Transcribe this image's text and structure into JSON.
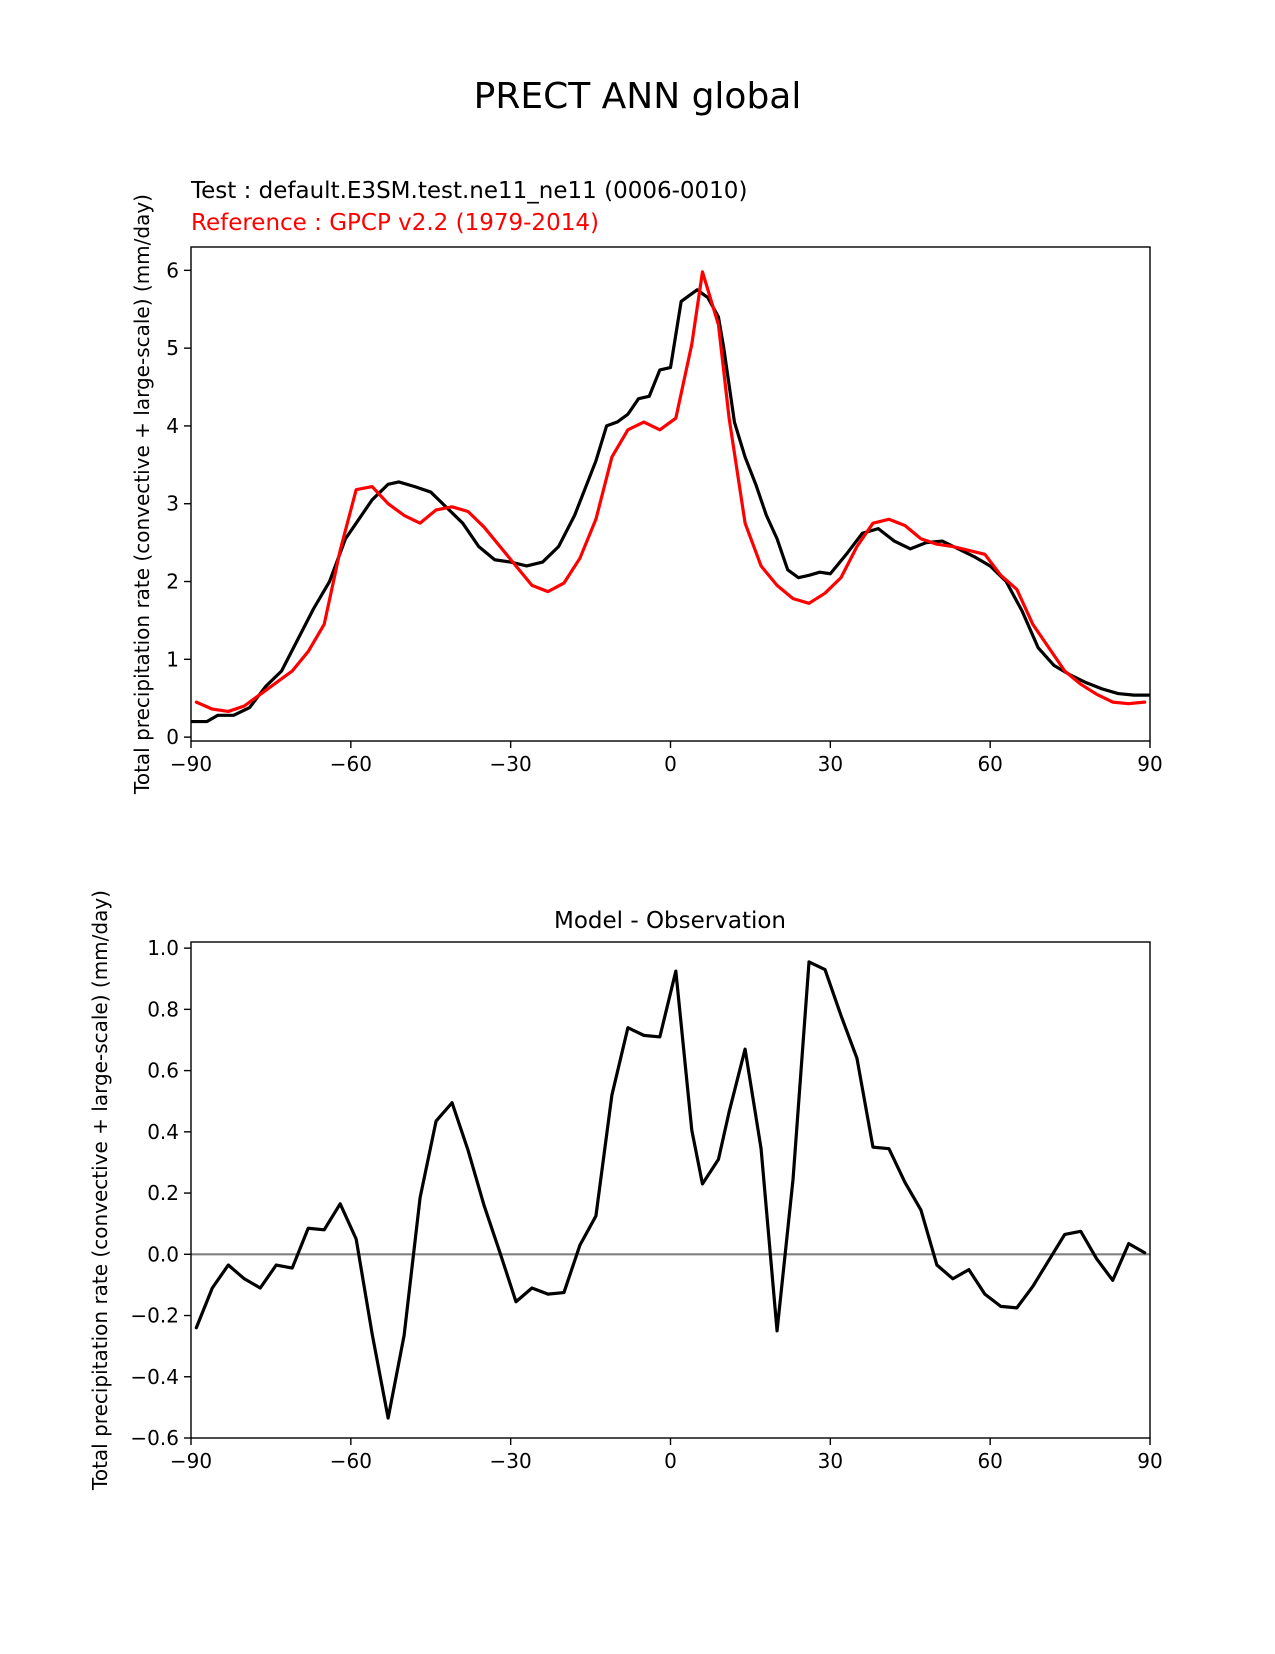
{
  "figure": {
    "title": "PRECT ANN global"
  },
  "chart_data": [
    {
      "type": "line",
      "test_label": "Test : default.E3SM.test.ne11_ne11 (0006-0010)",
      "reference_label": "Reference : GPCP v2.2 (1979-2014)",
      "title": "",
      "xlabel": "",
      "ylabel": "Total precipitation rate (convective + large-scale) (mm/day)",
      "xlim": [
        -90,
        90
      ],
      "ylim": [
        -0.05,
        6.3
      ],
      "xticks": [
        -90,
        -60,
        -30,
        0,
        30,
        60,
        90
      ],
      "xtick_labels": [
        "−90",
        "−60",
        "−30",
        "0",
        "30",
        "60",
        "90"
      ],
      "yticks": [
        0,
        1,
        2,
        3,
        4,
        5,
        6
      ],
      "ytick_labels": [
        "0",
        "1",
        "2",
        "3",
        "4",
        "5",
        "6"
      ],
      "grid": false,
      "series": [
        {
          "name": "Test : default.E3SM.test.ne11_ne11 (0006-0010)",
          "color": "#000000",
          "x": [
            -90,
            -87,
            -85,
            -82,
            -79,
            -76,
            -73,
            -70,
            -67,
            -64,
            -61,
            -59,
            -56,
            -53,
            -51,
            -48,
            -45,
            -42,
            -39,
            -36,
            -33,
            -30,
            -27,
            -24,
            -21,
            -18,
            -16,
            -14,
            -12,
            -10,
            -8,
            -6,
            -4,
            -2,
            0,
            2,
            4,
            5,
            7,
            9,
            10,
            12,
            14,
            16,
            18,
            20,
            22,
            24,
            26,
            28,
            30,
            33,
            36,
            39,
            42,
            45,
            48,
            51,
            54,
            57,
            60,
            63,
            66,
            69,
            72,
            75,
            78,
            81,
            84,
            87,
            90
          ],
          "values": [
            0.2,
            0.2,
            0.28,
            0.28,
            0.38,
            0.65,
            0.85,
            1.25,
            1.65,
            2.0,
            2.55,
            2.75,
            3.05,
            3.25,
            3.28,
            3.22,
            3.15,
            2.95,
            2.75,
            2.45,
            2.28,
            2.25,
            2.2,
            2.25,
            2.45,
            2.85,
            3.2,
            3.55,
            4.0,
            4.05,
            4.15,
            4.35,
            4.38,
            4.72,
            4.75,
            5.6,
            5.7,
            5.75,
            5.65,
            5.4,
            5.0,
            4.05,
            3.6,
            3.25,
            2.85,
            2.55,
            2.15,
            2.05,
            2.08,
            2.12,
            2.1,
            2.35,
            2.62,
            2.68,
            2.52,
            2.42,
            2.5,
            2.52,
            2.42,
            2.32,
            2.2,
            2.0,
            1.62,
            1.15,
            0.92,
            0.8,
            0.7,
            0.62,
            0.56,
            0.54,
            0.54
          ]
        },
        {
          "name": "Reference : GPCP v2.2 (1979-2014)",
          "color": "#ff0000",
          "x": [
            -89,
            -86,
            -83,
            -80,
            -77,
            -74,
            -71,
            -68,
            -65,
            -62,
            -59,
            -56,
            -53,
            -50,
            -47,
            -44,
            -41,
            -38,
            -35,
            -32,
            -29,
            -26,
            -23,
            -20,
            -17,
            -14,
            -11,
            -8,
            -5,
            -2,
            1,
            4,
            6,
            9,
            11,
            14,
            17,
            20,
            23,
            26,
            29,
            32,
            35,
            38,
            41,
            44,
            47,
            50,
            53,
            56,
            59,
            62,
            65,
            68,
            71,
            74,
            77,
            80,
            83,
            86,
            89
          ],
          "values": [
            0.45,
            0.36,
            0.33,
            0.4,
            0.55,
            0.7,
            0.85,
            1.1,
            1.45,
            2.4,
            3.18,
            3.22,
            3.0,
            2.85,
            2.75,
            2.92,
            2.96,
            2.9,
            2.7,
            2.45,
            2.2,
            1.95,
            1.87,
            1.98,
            2.3,
            2.8,
            3.6,
            3.95,
            4.05,
            3.95,
            4.1,
            5.05,
            5.98,
            5.3,
            4.1,
            2.75,
            2.2,
            1.95,
            1.78,
            1.72,
            1.85,
            2.05,
            2.45,
            2.75,
            2.8,
            2.72,
            2.55,
            2.48,
            2.45,
            2.4,
            2.35,
            2.08,
            1.9,
            1.45,
            1.15,
            0.85,
            0.68,
            0.55,
            0.45,
            0.43,
            0.45
          ]
        }
      ]
    },
    {
      "type": "line",
      "title": "Model - Observation",
      "xlabel": "",
      "ylabel": "Total precipitation rate (convective + large-scale) (mm/day)",
      "xlim": [
        -90,
        90
      ],
      "ylim": [
        -0.6,
        1.02
      ],
      "xticks": [
        -90,
        -60,
        -30,
        0,
        30,
        60,
        90
      ],
      "xtick_labels": [
        "−90",
        "−60",
        "−30",
        "0",
        "30",
        "60",
        "90"
      ],
      "yticks": [
        -0.6,
        -0.4,
        -0.2,
        0.0,
        0.2,
        0.4,
        0.6,
        0.8,
        1.0
      ],
      "ytick_labels": [
        "−0.6",
        "−0.4",
        "−0.2",
        "0.0",
        "0.2",
        "0.4",
        "0.6",
        "0.8",
        "1.0"
      ],
      "grid": false,
      "zero_line_color": "#808080",
      "series": [
        {
          "color": "#000000",
          "x": [
            -89,
            -86,
            -83,
            -80,
            -77,
            -74,
            -71,
            -68,
            -65,
            -62,
            -59,
            -56,
            -53,
            -50,
            -47,
            -44,
            -41,
            -38,
            -35,
            -32,
            -29,
            -26,
            -23,
            -20,
            -17,
            -14,
            -11,
            -8,
            -5,
            -2,
            1,
            4,
            6,
            9,
            11,
            14,
            17,
            20,
            23,
            26,
            29,
            32,
            35,
            38,
            41,
            44,
            47,
            50,
            53,
            56,
            59,
            62,
            65,
            68,
            71,
            74,
            77,
            80,
            83,
            86,
            89
          ],
          "values": [
            -0.24,
            -0.11,
            -0.035,
            -0.08,
            -0.11,
            -0.035,
            -0.045,
            0.085,
            0.08,
            0.165,
            0.05,
            -0.26,
            -0.535,
            -0.265,
            0.185,
            0.435,
            0.495,
            0.34,
            0.16,
            0.005,
            -0.155,
            -0.11,
            -0.13,
            -0.125,
            0.03,
            0.125,
            0.52,
            0.74,
            0.715,
            0.71,
            0.925,
            0.405,
            0.23,
            0.31,
            0.465,
            0.67,
            0.345,
            -0.25,
            0.245,
            0.955,
            0.93,
            0.78,
            0.64,
            0.35,
            0.345,
            0.235,
            0.145,
            -0.035,
            -0.08,
            -0.05,
            -0.13,
            -0.17,
            -0.175,
            -0.105,
            -0.02,
            0.065,
            0.075,
            -0.015,
            -0.085,
            0.035,
            0.005
          ]
        }
      ]
    }
  ]
}
